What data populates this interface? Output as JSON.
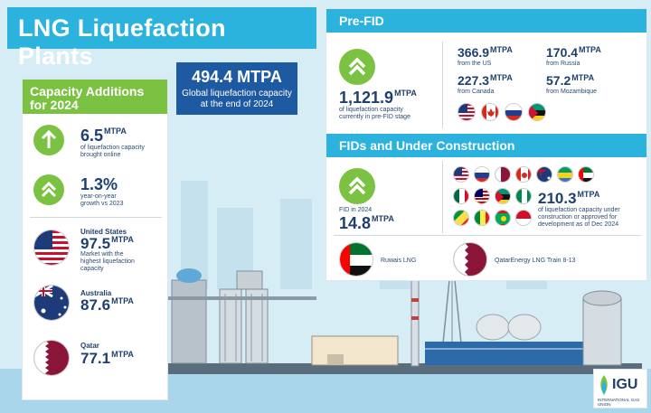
{
  "title": "LNG Liquefaction Plants",
  "global": {
    "value": "494.4 MTPA",
    "caption_line1": "Global liquefaction capacity",
    "caption_line2": "at the end of 2024"
  },
  "capacity_additions": {
    "heading_line1": "Capacity Additions",
    "heading_line2": "for 2024",
    "added": {
      "value": "6.5",
      "unit": "MTPA",
      "caption_line1": "of liquefaction capacity",
      "caption_line2": "brought online"
    },
    "growth": {
      "value": "1.3%",
      "caption_line1": "year-on-year",
      "caption_line2": "growth vs 2023"
    },
    "countries": [
      {
        "name": "United States",
        "value": "97.5",
        "unit": "MTPA",
        "caption_line1": "Market with the",
        "caption_line2": "highest liquefaction",
        "caption_line3": "capacity"
      },
      {
        "name": "Australia",
        "value": "87.6",
        "unit": "MTPA"
      },
      {
        "name": "Qatar",
        "value": "77.1",
        "unit": "MTPA"
      }
    ]
  },
  "pre_fid": {
    "heading": "Pre-FID",
    "total": {
      "value": "1,121.9",
      "unit": "MTPA",
      "caption_line1": "of liquefaction capacity",
      "caption_line2": "currently in pre-FID stage"
    },
    "breakdown": [
      {
        "value": "366.9",
        "unit": "MTPA",
        "caption": "from the US"
      },
      {
        "value": "170.4",
        "unit": "MTPA",
        "caption": "from Russia"
      },
      {
        "value": "227.3",
        "unit": "MTPA",
        "caption": "from Canada"
      },
      {
        "value": "57.2",
        "unit": "MTPA",
        "caption": "from Mozambique"
      }
    ]
  },
  "fids": {
    "heading": "FIDs and Under Construction",
    "fid_2024": {
      "label": "FID in 2024",
      "value": "14.8",
      "unit": "MTPA"
    },
    "under_construction": {
      "value": "210.3",
      "unit": "MTPA",
      "caption_line1": "of liquefaction capacity under",
      "caption_line2": "construction or approved for",
      "caption_line3": "development as of Dec 2024"
    },
    "projects": [
      {
        "name": "Ruwais LNG"
      },
      {
        "name": "QatarEnergy LNG Train 8-13"
      }
    ]
  },
  "logo": {
    "text": "IGU",
    "subtext": "INTERNATIONAL GAS UNION"
  }
}
